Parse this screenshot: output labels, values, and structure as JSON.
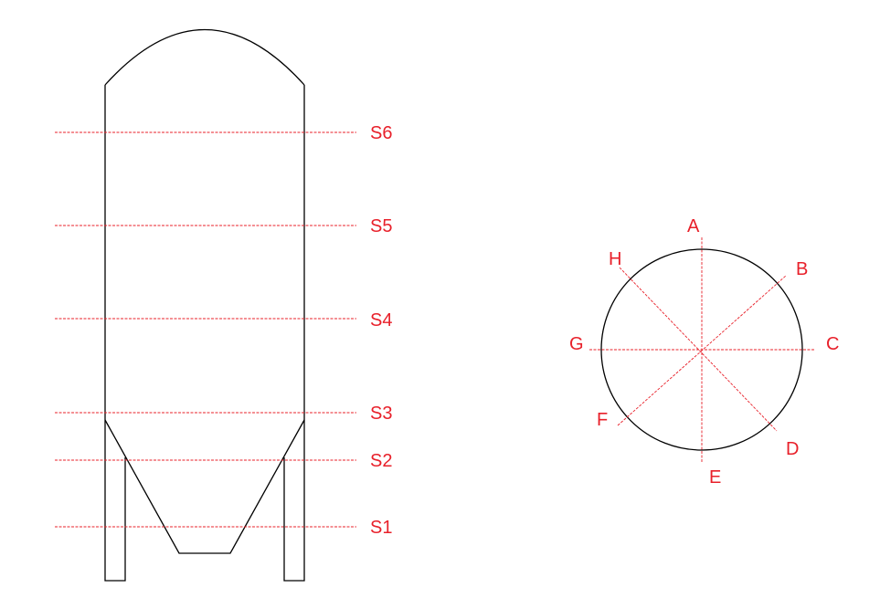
{
  "colors": {
    "section_lines": "#e8202a",
    "outline": "#000000",
    "background": "#ffffff"
  },
  "elevation": {
    "section_labels": [
      "S6",
      "S5",
      "S4",
      "S3",
      "S2",
      "S1"
    ]
  },
  "plan": {
    "direction_labels": [
      "A",
      "B",
      "C",
      "D",
      "E",
      "F",
      "G",
      "H"
    ]
  }
}
